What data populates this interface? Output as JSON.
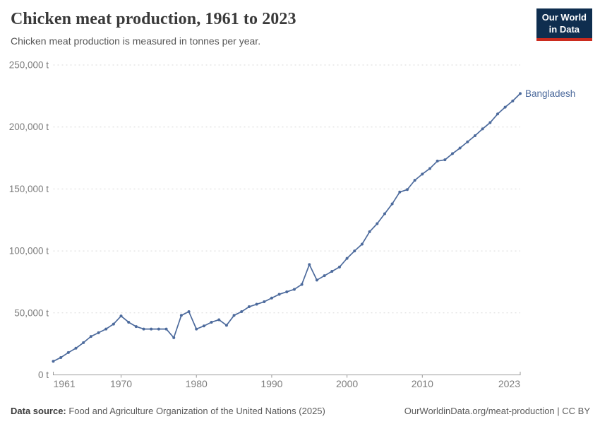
{
  "header": {
    "title": "Chicken meat production, 1961 to 2023",
    "subtitle": "Chicken meat production is measured in tonnes per year.",
    "logo": {
      "line1": "Our World",
      "line2": "in Data",
      "bg_color": "#0f2e4f",
      "accent_color": "#cb2b1e"
    }
  },
  "footer": {
    "source_label": "Data source:",
    "source_text": " Food and Agriculture Organization of the United Nations (2025)",
    "link_text": "OurWorldinData.org/meat-production | CC BY"
  },
  "chart_data": {
    "type": "line",
    "title": "Chicken meat production, 1961 to 2023",
    "subtitle": "Chicken meat production is measured in tonnes per year.",
    "xlabel": "",
    "ylabel": "",
    "unit": "t",
    "xlim": [
      1961,
      2023
    ],
    "ylim": [
      0,
      250000
    ],
    "grid": "horizontal-dashed",
    "legend_position": "end-of-line-label",
    "colors": {
      "line": "#4C6A9C",
      "gridline": "#d9d9d9",
      "axis": "#999999",
      "tick_text": "#7d7d7d"
    },
    "y_ticks": [
      {
        "value": 0,
        "label": "0 t"
      },
      {
        "value": 50000,
        "label": "50,000 t"
      },
      {
        "value": 100000,
        "label": "100,000 t"
      },
      {
        "value": 150000,
        "label": "150,000 t"
      },
      {
        "value": 200000,
        "label": "200,000 t"
      },
      {
        "value": 250000,
        "label": "250,000 t"
      }
    ],
    "x_ticks": [
      {
        "value": 1961,
        "label": "1961",
        "align": "start"
      },
      {
        "value": 1970,
        "label": "1970",
        "align": "middle"
      },
      {
        "value": 1980,
        "label": "1980",
        "align": "middle"
      },
      {
        "value": 1990,
        "label": "1990",
        "align": "middle"
      },
      {
        "value": 2000,
        "label": "2000",
        "align": "middle"
      },
      {
        "value": 2010,
        "label": "2010",
        "align": "middle"
      },
      {
        "value": 2023,
        "label": "2023",
        "align": "end"
      }
    ],
    "series": [
      {
        "name": "Bangladesh",
        "color": "#4C6A9C",
        "x": [
          1961,
          1962,
          1963,
          1964,
          1965,
          1966,
          1967,
          1968,
          1969,
          1970,
          1971,
          1972,
          1973,
          1974,
          1975,
          1976,
          1977,
          1978,
          1979,
          1980,
          1981,
          1982,
          1983,
          1984,
          1985,
          1986,
          1987,
          1988,
          1989,
          1990,
          1991,
          1992,
          1993,
          1994,
          1995,
          1996,
          1997,
          1998,
          1999,
          2000,
          2001,
          2002,
          2003,
          2004,
          2005,
          2006,
          2007,
          2008,
          2009,
          2010,
          2011,
          2012,
          2013,
          2014,
          2015,
          2016,
          2017,
          2018,
          2019,
          2020,
          2021,
          2022,
          2023
        ],
        "values": [
          11000,
          14000,
          18000,
          21500,
          26000,
          31000,
          34000,
          37000,
          41000,
          47500,
          42500,
          39000,
          37000,
          37000,
          37000,
          37000,
          30000,
          48000,
          51000,
          37000,
          39500,
          42500,
          44500,
          40000,
          48000,
          51000,
          55000,
          57000,
          59000,
          62000,
          65000,
          67000,
          69000,
          73000,
          89000,
          76500,
          80000,
          83500,
          87000,
          94000,
          100000,
          105500,
          115500,
          122000,
          130000,
          138000,
          147500,
          149500,
          157000,
          162000,
          166500,
          172500,
          173500,
          178500,
          183000,
          188000,
          193000,
          198500,
          203500,
          210500,
          216000,
          221000,
          227000
        ]
      }
    ]
  }
}
